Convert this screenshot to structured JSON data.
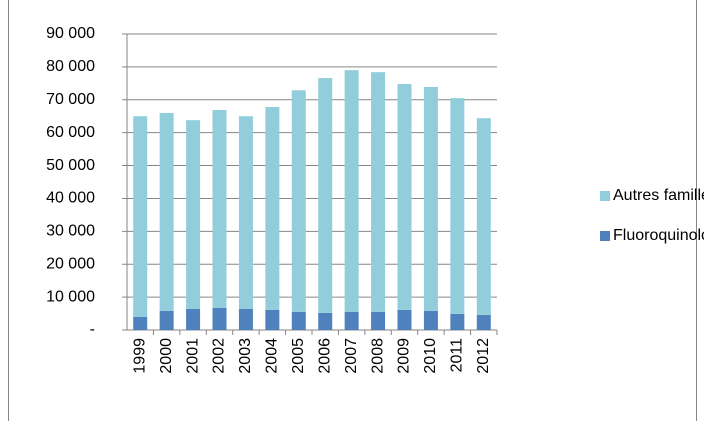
{
  "chart_data": {
    "type": "stacked_bar",
    "categories": [
      "1999",
      "2000",
      "2001",
      "2002",
      "2003",
      "2004",
      "2005",
      "2006",
      "2007",
      "2008",
      "2009",
      "2010",
      "2011",
      "2012"
    ],
    "series": [
      {
        "name": "Fluoroquinolones",
        "color": "#4f81bd",
        "values": [
          4000,
          5800,
          6400,
          6700,
          6400,
          6100,
          5500,
          5200,
          5500,
          5500,
          6100,
          5800,
          4900,
          4600
        ]
      },
      {
        "name": "Autres familles",
        "color": "#92cddc",
        "values": [
          61000,
          60200,
          57400,
          60200,
          58600,
          61700,
          67400,
          71400,
          73500,
          72900,
          68700,
          68100,
          65600,
          59800
        ]
      }
    ],
    "ylim": [
      0,
      90000
    ],
    "yticks": [
      {
        "value": 0,
        "label": "-"
      },
      {
        "value": 10000,
        "label": "10 000"
      },
      {
        "value": 20000,
        "label": "20 000"
      },
      {
        "value": 30000,
        "label": "30 000"
      },
      {
        "value": 40000,
        "label": "40 000"
      },
      {
        "value": 50000,
        "label": "50 000"
      },
      {
        "value": 60000,
        "label": "60 000"
      },
      {
        "value": 70000,
        "label": "70 000"
      },
      {
        "value": 80000,
        "label": "80 000"
      },
      {
        "value": 90000,
        "label": "90 000"
      }
    ],
    "grid": true,
    "legend": "right"
  }
}
